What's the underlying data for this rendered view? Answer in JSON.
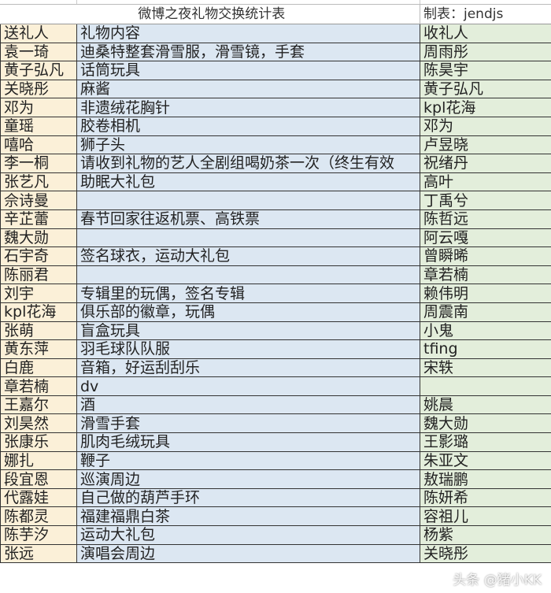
{
  "title": "微博之夜礼物交换统计表",
  "maker": "制表：jendjs",
  "headers": {
    "giver": "送礼人",
    "gift": "礼物内容",
    "receiver": "收礼人"
  },
  "rows": [
    {
      "giver": "袁一琦",
      "gift": "迪桑特整套滑雪服，滑雪镜，手套",
      "receiver": "周雨彤"
    },
    {
      "giver": "黄子弘凡",
      "gift": "话筒玩具",
      "receiver": "陈昊宇"
    },
    {
      "giver": "关晓彤",
      "gift": "麻酱",
      "receiver": "黄子弘凡"
    },
    {
      "giver": "邓为",
      "gift": "非遗绒花胸针",
      "receiver": "kpl花海"
    },
    {
      "giver": "童瑶",
      "gift": "胶卷相机",
      "receiver": "邓为"
    },
    {
      "giver": "嘻哈",
      "gift": "狮子头",
      "receiver": "卢昱晓"
    },
    {
      "giver": "李一桐",
      "gift": "请收到礼物的艺人全剧组喝奶茶一次（终生有效",
      "receiver": "祝绪丹"
    },
    {
      "giver": "张艺凡",
      "gift": "助眠大礼包",
      "receiver": "高叶"
    },
    {
      "giver": "佘诗曼",
      "gift": "",
      "receiver": "丁禹兮"
    },
    {
      "giver": "辛芷蕾",
      "gift": "春节回家往返机票、高铁票",
      "receiver": "陈哲远"
    },
    {
      "giver": "魏大勋",
      "gift": "",
      "receiver": "阿云嘎"
    },
    {
      "giver": "石宇奇",
      "gift": "签名球衣，运动大礼包",
      "receiver": "曾瞬晞"
    },
    {
      "giver": "陈丽君",
      "gift": "",
      "receiver": "章若楠"
    },
    {
      "giver": "刘宇",
      "gift": "专辑里的玩偶，签名专辑",
      "receiver": "赖伟明"
    },
    {
      "giver": "kpl花海",
      "gift": "俱乐部的徽章，玩偶",
      "receiver": "周震南"
    },
    {
      "giver": "张萌",
      "gift": "盲盒玩具",
      "receiver": "小鬼"
    },
    {
      "giver": "黄东萍",
      "gift": "羽毛球队队服",
      "receiver": "tfing"
    },
    {
      "giver": "白鹿",
      "gift": "音箱，好运刮刮乐",
      "receiver": "宋轶"
    },
    {
      "giver": "章若楠",
      "gift": "dv",
      "receiver": ""
    },
    {
      "giver": "王嘉尔",
      "gift": "酒",
      "receiver": "姚晨"
    },
    {
      "giver": "刘昊然",
      "gift": "滑雪手套",
      "receiver": "魏大勋"
    },
    {
      "giver": "张康乐",
      "gift": "肌肉毛绒玩具",
      "receiver": "王影璐"
    },
    {
      "giver": "娜扎",
      "gift": "鞭子",
      "receiver": "朱亚文"
    },
    {
      "giver": "段宜恩",
      "gift": "巡演周边",
      "receiver": "敖瑞鹏"
    },
    {
      "giver": "代露娃",
      "gift": "自己做的葫芦手环",
      "receiver": "陈妍希"
    },
    {
      "giver": "陈都灵",
      "gift": "福建福鼎白茶",
      "receiver": "容祖儿"
    },
    {
      "giver": "陈芋汐",
      "gift": "运动大礼包",
      "receiver": "杨紫"
    },
    {
      "giver": "张远",
      "gift": "演唱会周边",
      "receiver": "关晓彤"
    }
  ],
  "watermark": "头条 @猪小KK",
  "colors": {
    "giver_col": "#fbf0d8",
    "gift_col": "#dce7f2",
    "receiver_col": "#e3eedb"
  }
}
